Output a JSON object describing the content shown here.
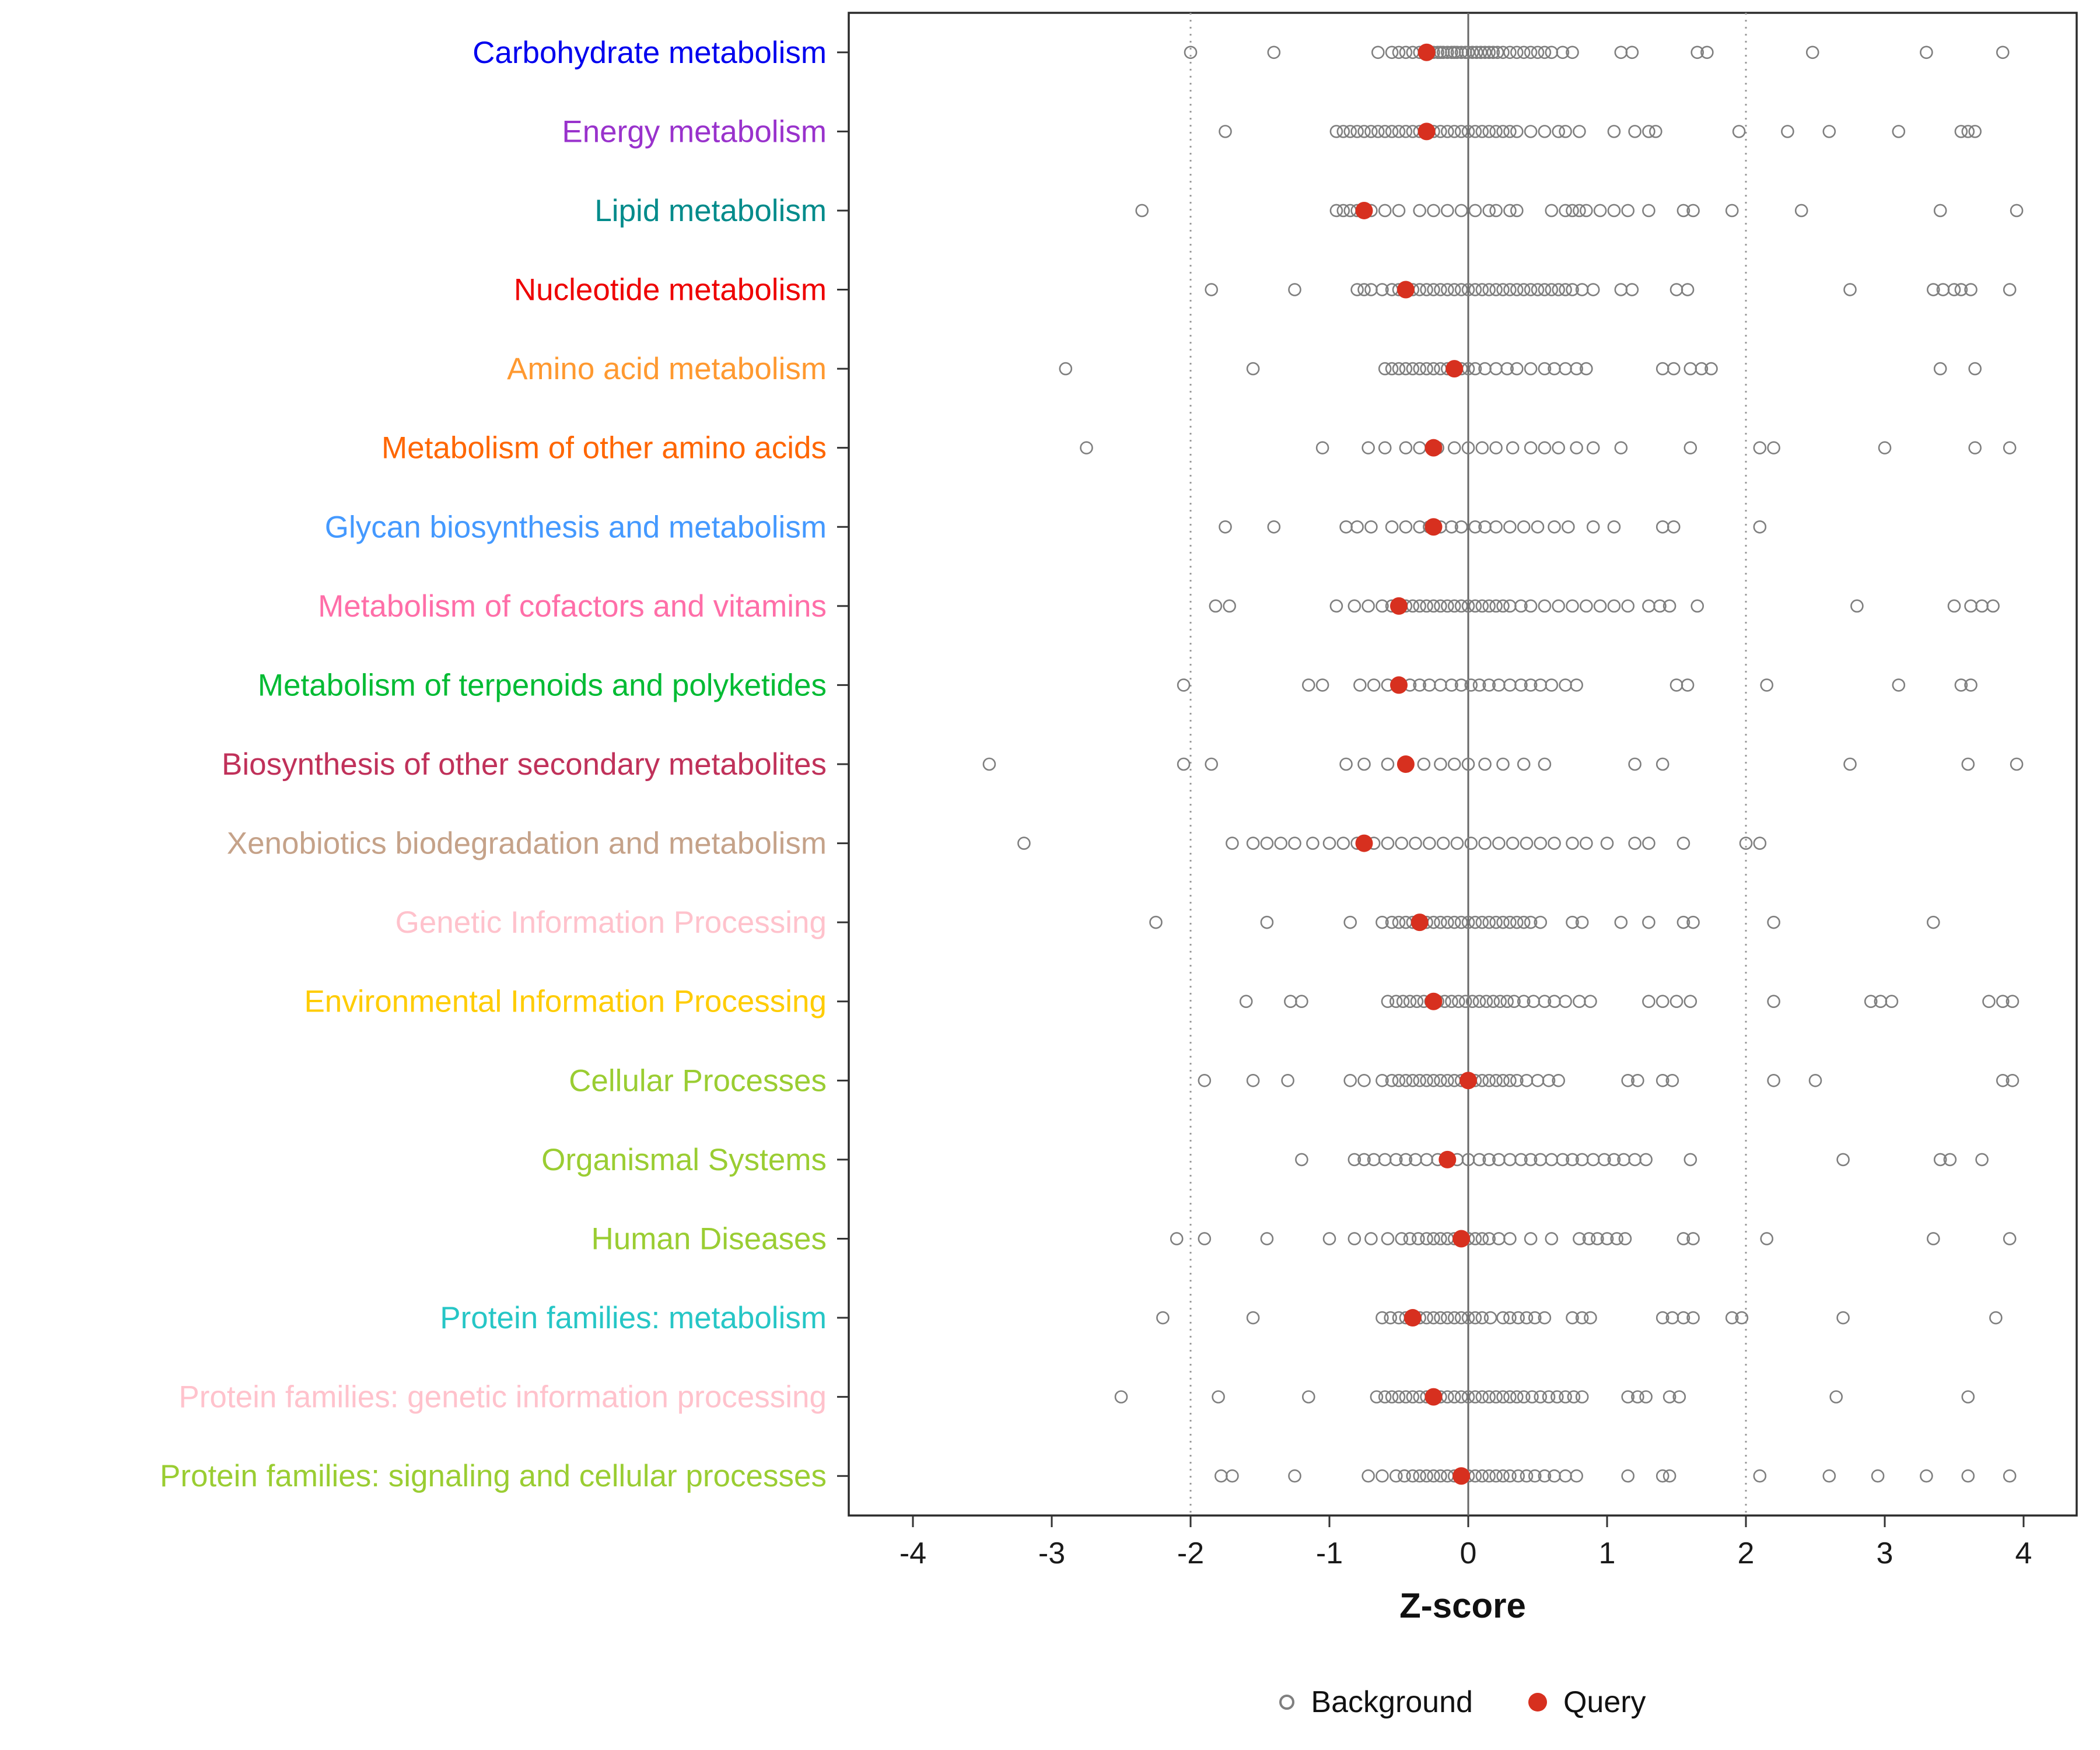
{
  "colors": {
    "query": "#d7301f",
    "background_stroke": "#7f7f7f",
    "panel_border": "#2b2b2b",
    "zero_line": "#666666",
    "dotted_line": "#999999",
    "axis_text": "#1a1a1a"
  },
  "legend": {
    "background_label": "Background",
    "query_label": "Query"
  },
  "chart_data": {
    "type": "scatter",
    "title": "",
    "xlabel": "Z-score",
    "ylabel": "",
    "xlim": [
      -4.5,
      4.5
    ],
    "x_ticks": [
      -4,
      -3,
      -2,
      -1,
      0,
      1,
      2,
      3,
      4
    ],
    "grid": false,
    "legend_position": "bottom",
    "reference_lines": {
      "solid": [
        0
      ],
      "dotted": [
        -2,
        2
      ]
    },
    "rows": [
      {
        "label": "Carbohydrate metabolism",
        "color": "#0000ee",
        "query": -0.3,
        "background": [
          -2.0,
          -1.4,
          -0.65,
          -0.55,
          -0.5,
          -0.45,
          -0.4,
          -0.35,
          -0.3,
          -0.28,
          -0.25,
          -0.22,
          -0.2,
          -0.18,
          -0.15,
          -0.12,
          -0.1,
          -0.08,
          -0.05,
          -0.02,
          0,
          0.03,
          0.06,
          0.09,
          0.12,
          0.15,
          0.18,
          0.21,
          0.25,
          0.3,
          0.35,
          0.4,
          0.45,
          0.5,
          0.55,
          0.6,
          0.68,
          0.75,
          1.1,
          1.18,
          1.65,
          1.72,
          2.48,
          3.3,
          3.85
        ]
      },
      {
        "label": "Energy metabolism",
        "color": "#9932cc",
        "query": -0.3,
        "background": [
          -1.75,
          -0.95,
          -0.9,
          -0.85,
          -0.8,
          -0.75,
          -0.7,
          -0.65,
          -0.6,
          -0.55,
          -0.5,
          -0.45,
          -0.4,
          -0.35,
          -0.3,
          -0.25,
          -0.2,
          -0.15,
          -0.1,
          -0.05,
          0,
          0.05,
          0.1,
          0.15,
          0.2,
          0.25,
          0.3,
          0.35,
          0.45,
          0.55,
          0.65,
          0.7,
          0.8,
          1.05,
          1.2,
          1.3,
          1.35,
          1.95,
          2.3,
          2.6,
          3.1,
          3.55,
          3.6,
          3.65
        ]
      },
      {
        "label": "Lipid metabolism",
        "color": "#008b8b",
        "query": -0.75,
        "background": [
          -2.35,
          -0.95,
          -0.9,
          -0.85,
          -0.8,
          -0.7,
          -0.6,
          -0.5,
          -0.35,
          -0.25,
          -0.15,
          -0.05,
          0.05,
          0.15,
          0.2,
          0.3,
          0.35,
          0.6,
          0.7,
          0.75,
          0.8,
          0.85,
          0.95,
          1.05,
          1.15,
          1.3,
          1.55,
          1.62,
          1.9,
          2.4,
          3.4,
          3.95
        ]
      },
      {
        "label": "Nucleotide metabolism",
        "color": "#ee0000",
        "query": -0.45,
        "background": [
          -1.85,
          -1.25,
          -0.8,
          -0.75,
          -0.7,
          -0.62,
          -0.55,
          -0.5,
          -0.45,
          -0.4,
          -0.35,
          -0.3,
          -0.25,
          -0.2,
          -0.15,
          -0.1,
          -0.05,
          0,
          0.05,
          0.1,
          0.15,
          0.2,
          0.25,
          0.3,
          0.35,
          0.4,
          0.45,
          0.5,
          0.55,
          0.6,
          0.65,
          0.7,
          0.75,
          0.82,
          0.9,
          1.1,
          1.18,
          1.5,
          1.58,
          2.75,
          3.35,
          3.42,
          3.5,
          3.55,
          3.62,
          3.9
        ]
      },
      {
        "label": "Amino acid metabolism",
        "color": "#ff9930",
        "query": -0.1,
        "background": [
          -2.9,
          -1.55,
          -0.6,
          -0.55,
          -0.5,
          -0.45,
          -0.4,
          -0.35,
          -0.3,
          -0.25,
          -0.2,
          -0.15,
          -0.1,
          -0.05,
          0,
          0.05,
          0.12,
          0.2,
          0.28,
          0.35,
          0.45,
          0.55,
          0.62,
          0.7,
          0.78,
          0.85,
          1.4,
          1.48,
          1.6,
          1.68,
          1.75,
          3.4,
          3.65
        ]
      },
      {
        "label": "Metabolism of other amino acids",
        "color": "#ff6600",
        "query": -0.25,
        "background": [
          -2.75,
          -1.05,
          -0.72,
          -0.6,
          -0.45,
          -0.35,
          -0.22,
          -0.1,
          0,
          0.1,
          0.2,
          0.32,
          0.45,
          0.55,
          0.65,
          0.78,
          0.9,
          1.1,
          1.6,
          2.1,
          2.2,
          3.0,
          3.65,
          3.9
        ]
      },
      {
        "label": "Glycan biosynthesis and metabolism",
        "color": "#4499ff",
        "query": -0.25,
        "background": [
          -1.75,
          -1.4,
          -0.88,
          -0.8,
          -0.7,
          -0.55,
          -0.45,
          -0.35,
          -0.28,
          -0.2,
          -0.12,
          -0.05,
          0.05,
          0.12,
          0.2,
          0.3,
          0.4,
          0.5,
          0.62,
          0.72,
          0.9,
          1.05,
          1.4,
          1.48,
          2.1
        ]
      },
      {
        "label": "Metabolism of cofactors and vitamins",
        "color": "#ff6ea8",
        "query": -0.5,
        "background": [
          -1.82,
          -1.72,
          -0.95,
          -0.82,
          -0.72,
          -0.62,
          -0.55,
          -0.5,
          -0.45,
          -0.4,
          -0.35,
          -0.3,
          -0.25,
          -0.2,
          -0.15,
          -0.1,
          -0.05,
          0,
          0.05,
          0.1,
          0.15,
          0.2,
          0.25,
          0.3,
          0.38,
          0.45,
          0.55,
          0.65,
          0.75,
          0.85,
          0.95,
          1.05,
          1.15,
          1.3,
          1.38,
          1.45,
          1.65,
          2.8,
          3.5,
          3.62,
          3.7,
          3.78
        ]
      },
      {
        "label": "Metabolism of terpenoids and polyketides",
        "color": "#00bb33",
        "query": -0.5,
        "background": [
          -2.05,
          -1.15,
          -1.05,
          -0.78,
          -0.68,
          -0.58,
          -0.5,
          -0.42,
          -0.35,
          -0.28,
          -0.2,
          -0.12,
          -0.05,
          0.02,
          0.08,
          0.15,
          0.22,
          0.3,
          0.38,
          0.45,
          0.52,
          0.6,
          0.7,
          0.78,
          1.5,
          1.58,
          2.15,
          3.1,
          3.55,
          3.62
        ]
      },
      {
        "label": "Biosynthesis of other secondary metabolites",
        "color": "#c0315a",
        "query": -0.45,
        "background": [
          -3.45,
          -2.05,
          -1.85,
          -0.88,
          -0.75,
          -0.58,
          -0.45,
          -0.32,
          -0.2,
          -0.1,
          0,
          0.12,
          0.25,
          0.4,
          0.55,
          1.2,
          1.4,
          2.75,
          3.6,
          3.95
        ]
      },
      {
        "label": "Xenobiotics biodegradation and metabolism",
        "color": "#c5a289",
        "query": -0.75,
        "background": [
          -3.2,
          -1.7,
          -1.55,
          -1.45,
          -1.35,
          -1.25,
          -1.12,
          -1.0,
          -0.9,
          -0.8,
          -0.68,
          -0.58,
          -0.48,
          -0.38,
          -0.28,
          -0.18,
          -0.08,
          0.02,
          0.12,
          0.22,
          0.32,
          0.42,
          0.52,
          0.62,
          0.75,
          0.85,
          1.0,
          1.2,
          1.3,
          1.55,
          2.0,
          2.1
        ]
      },
      {
        "label": "Genetic Information Processing",
        "color": "#ffc2cc",
        "query": -0.35,
        "background": [
          -2.25,
          -1.45,
          -0.85,
          -0.62,
          -0.55,
          -0.5,
          -0.45,
          -0.4,
          -0.35,
          -0.3,
          -0.25,
          -0.2,
          -0.15,
          -0.1,
          -0.05,
          0,
          0.05,
          0.1,
          0.15,
          0.2,
          0.25,
          0.3,
          0.35,
          0.4,
          0.45,
          0.52,
          0.75,
          0.82,
          1.1,
          1.3,
          1.55,
          1.62,
          2.2,
          3.35
        ]
      },
      {
        "label": "Environmental Information Processing",
        "color": "#ffcc00",
        "query": -0.25,
        "background": [
          -1.6,
          -1.28,
          -1.2,
          -0.58,
          -0.52,
          -0.47,
          -0.42,
          -0.37,
          -0.32,
          -0.27,
          -0.22,
          -0.17,
          -0.12,
          -0.07,
          -0.02,
          0.03,
          0.08,
          0.13,
          0.18,
          0.23,
          0.28,
          0.33,
          0.4,
          0.47,
          0.55,
          0.62,
          0.7,
          0.8,
          0.88,
          1.3,
          1.4,
          1.5,
          1.6,
          2.2,
          2.9,
          2.97,
          3.05,
          3.75,
          3.85,
          3.92
        ]
      },
      {
        "label": "Cellular Processes",
        "color": "#9acd32",
        "query": 0.0,
        "background": [
          -1.9,
          -1.55,
          -1.3,
          -0.85,
          -0.75,
          -0.62,
          -0.55,
          -0.5,
          -0.45,
          -0.4,
          -0.35,
          -0.3,
          -0.25,
          -0.2,
          -0.15,
          -0.1,
          -0.05,
          0,
          0.05,
          0.1,
          0.15,
          0.2,
          0.25,
          0.3,
          0.35,
          0.42,
          0.5,
          0.58,
          0.65,
          1.15,
          1.22,
          1.4,
          1.47,
          2.2,
          2.5,
          3.85,
          3.92
        ]
      },
      {
        "label": "Organismal Systems",
        "color": "#9acd32",
        "query": -0.15,
        "background": [
          -1.2,
          -0.82,
          -0.75,
          -0.68,
          -0.6,
          -0.52,
          -0.45,
          -0.38,
          -0.3,
          -0.22,
          -0.15,
          -0.08,
          0,
          0.08,
          0.15,
          0.22,
          0.3,
          0.38,
          0.45,
          0.52,
          0.6,
          0.68,
          0.75,
          0.82,
          0.9,
          0.98,
          1.05,
          1.12,
          1.2,
          1.28,
          1.6,
          2.7,
          3.4,
          3.47,
          3.7
        ]
      },
      {
        "label": "Human Diseases",
        "color": "#9acd32",
        "query": -0.05,
        "background": [
          -2.1,
          -1.9,
          -1.45,
          -1.0,
          -0.82,
          -0.7,
          -0.58,
          -0.48,
          -0.42,
          -0.36,
          -0.3,
          -0.25,
          -0.2,
          -0.15,
          -0.1,
          -0.05,
          0,
          0.05,
          0.1,
          0.15,
          0.22,
          0.3,
          0.45,
          0.6,
          0.8,
          0.87,
          0.93,
          1.0,
          1.07,
          1.13,
          1.55,
          1.62,
          2.15,
          3.35,
          3.9
        ]
      },
      {
        "label": "Protein families: metabolism",
        "color": "#26c6c6",
        "query": -0.4,
        "background": [
          -2.2,
          -1.55,
          -0.62,
          -0.56,
          -0.5,
          -0.45,
          -0.4,
          -0.35,
          -0.3,
          -0.25,
          -0.2,
          -0.15,
          -0.1,
          -0.05,
          0,
          0.05,
          0.1,
          0.16,
          0.25,
          0.3,
          0.36,
          0.42,
          0.48,
          0.55,
          0.75,
          0.82,
          0.88,
          1.4,
          1.47,
          1.55,
          1.62,
          1.9,
          1.97,
          2.7,
          3.8
        ]
      },
      {
        "label": "Protein families: genetic information processing",
        "color": "#ffc2cc",
        "query": -0.25,
        "background": [
          -2.5,
          -1.8,
          -1.15,
          -0.66,
          -0.6,
          -0.55,
          -0.5,
          -0.45,
          -0.4,
          -0.35,
          -0.3,
          -0.25,
          -0.2,
          -0.15,
          -0.1,
          -0.05,
          0,
          0.05,
          0.1,
          0.15,
          0.2,
          0.25,
          0.3,
          0.35,
          0.4,
          0.46,
          0.52,
          0.58,
          0.64,
          0.7,
          0.76,
          0.82,
          1.15,
          1.22,
          1.28,
          1.45,
          1.52,
          2.65,
          3.6
        ]
      },
      {
        "label": "Protein families: signaling and cellular processes",
        "color": "#9acd32",
        "query": -0.05,
        "background": [
          -1.78,
          -1.7,
          -1.25,
          -0.72,
          -0.62,
          -0.52,
          -0.46,
          -0.4,
          -0.35,
          -0.3,
          -0.25,
          -0.2,
          -0.15,
          -0.1,
          -0.05,
          0,
          0.05,
          0.1,
          0.15,
          0.2,
          0.25,
          0.3,
          0.36,
          0.42,
          0.48,
          0.55,
          0.62,
          0.7,
          0.78,
          1.15,
          1.4,
          1.45,
          2.1,
          2.6,
          2.95,
          3.3,
          3.6,
          3.9
        ]
      }
    ]
  }
}
